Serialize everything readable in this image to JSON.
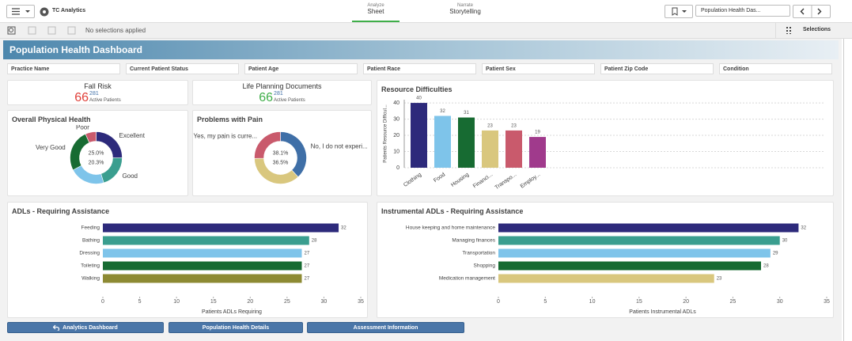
{
  "header": {
    "app_name": "TC Analytics",
    "tabs": [
      {
        "label": "Analyze",
        "name": "Sheet"
      },
      {
        "label": "Narrate",
        "name": "Storytelling"
      }
    ],
    "sheet_name": "Population Health Das...",
    "selections_status": "No selections applied",
    "selections_button": "Selections"
  },
  "dashboard": {
    "title": "Population Health Dashboard",
    "filters": [
      "Practice Name",
      "Current Patient Status",
      "Patient Age",
      "Patient Race",
      "Patient Sex",
      "Patient Zip Code",
      "Condition"
    ],
    "kpis": [
      {
        "title": "Fall Risk",
        "value": 66,
        "total": 281,
        "unit": "Active Patients",
        "color": "#e0403a"
      },
      {
        "title": "Life Planning Documents",
        "value": 66,
        "total": 281,
        "unit": "Active Patients",
        "color": "#3fae49"
      }
    ],
    "charts": [
      {
        "type": "pie",
        "title": "Overall Physical Health",
        "categories": [
          "Excellent",
          "Good",
          null,
          "Very Good",
          "Poor"
        ],
        "values": [
          25.0,
          20.3,
          22,
          26,
          6.7
        ],
        "value_labels": [
          "25.0%",
          "20.3%",
          null,
          null,
          null
        ],
        "colors": [
          "#2d2a7b",
          "#3a9e8f",
          "#7ec4ea",
          "#176b32",
          "#c95a6c"
        ]
      },
      {
        "type": "pie",
        "title": "Problems with Pain",
        "categories": [
          "No, I do not experi...",
          null,
          "Yes, my pain is curre..."
        ],
        "values": [
          38.1,
          36.5,
          25.4
        ],
        "value_labels": [
          "38.1%",
          "36.5%",
          null
        ],
        "colors": [
          "#3f6fa7",
          "#d9c77e",
          "#c95a6c"
        ]
      },
      {
        "type": "bar",
        "title": "Resource Difficulties",
        "y_label": "Patients Resource Difficul...",
        "categories": [
          "Clothing",
          "Food",
          "Housing",
          "Financi...",
          "Transpo...",
          "Employ..."
        ],
        "values": [
          40,
          32,
          31,
          23,
          23,
          19
        ],
        "colors": [
          "#2d2a7b",
          "#7ec4ea",
          "#176b32",
          "#d9c77e",
          "#c95a6c",
          "#a03a8c"
        ],
        "ylim": [
          0,
          42
        ],
        "yticks": [
          0,
          10,
          20,
          30,
          40
        ],
        "grid": true
      },
      {
        "type": "hbar",
        "title": "ADLs - Requiring Assistance",
        "x_label": "Patients ADLs Requiring",
        "categories": [
          "Feeding",
          "Bathing",
          "Dressing",
          "Toileting",
          "Walking"
        ],
        "values": [
          32,
          28,
          27,
          27,
          27
        ],
        "colors": [
          "#2d2a7b",
          "#3a9e8f",
          "#7ec4ea",
          "#176b32",
          "#8d8a33"
        ],
        "xlim": [
          0,
          35
        ],
        "xticks": [
          0,
          5,
          10,
          15,
          20,
          25,
          30,
          35
        ]
      },
      {
        "type": "hbar",
        "title": "Instrumental ADLs - Requiring Assistance",
        "x_label": "Patients Instrumental ADLs",
        "categories": [
          "House keeping and home maintenance",
          "Managing finances",
          "Transportation",
          "Shopping",
          "Medication management"
        ],
        "values": [
          32,
          30,
          29,
          28,
          23
        ],
        "colors": [
          "#2d2a7b",
          "#3a9e8f",
          "#7ec4ea",
          "#176b32",
          "#d9c77e"
        ],
        "xlim": [
          0,
          35
        ],
        "xticks": [
          0,
          5,
          10,
          15,
          20,
          25,
          30,
          35
        ]
      }
    ],
    "buttons": [
      "Analytics Dashboard",
      "Population Health Details",
      "Assessment Information"
    ]
  }
}
